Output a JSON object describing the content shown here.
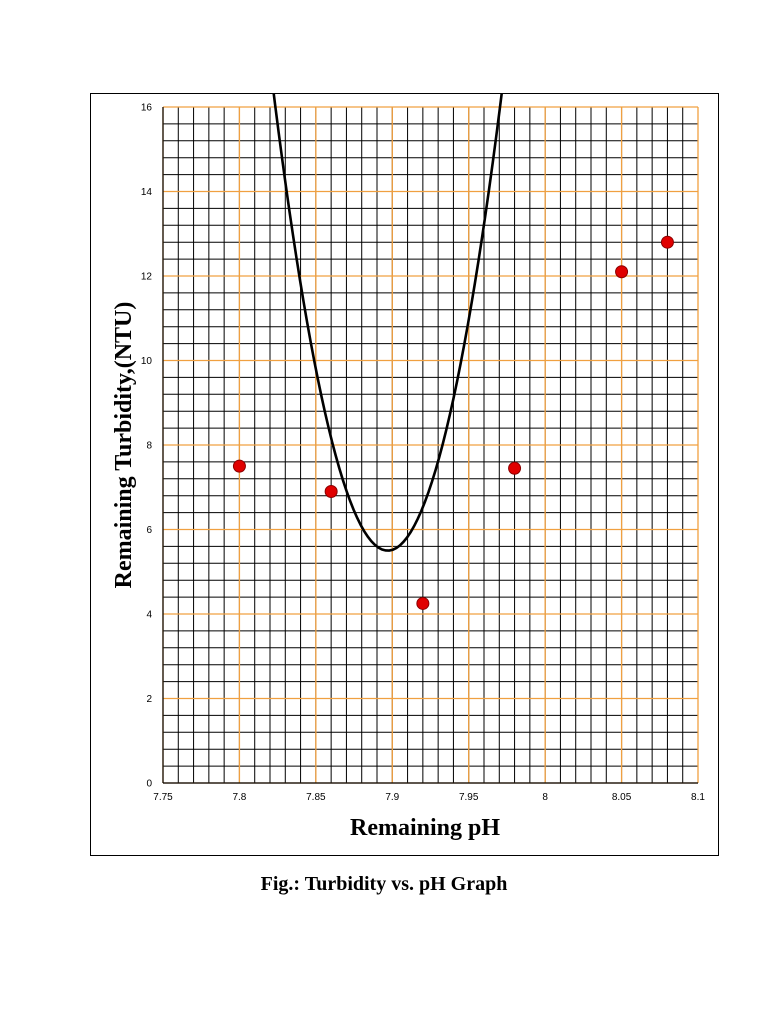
{
  "chart_data": {
    "type": "scatter",
    "xlabel": "Remaining pH",
    "ylabel": "Remaining Turbidity,(NTU)",
    "xlim": [
      7.75,
      8.1
    ],
    "ylim": [
      0,
      16
    ],
    "x_ticks": [
      "7.75",
      "7.8",
      "7.85",
      "7.9",
      "7.95",
      "8",
      "8.05",
      "8.1"
    ],
    "y_ticks": [
      "0",
      "2",
      "4",
      "6",
      "8",
      "10",
      "12",
      "14",
      "16"
    ],
    "minor_x_step": 0.01,
    "minor_y_step": 0.4,
    "grid": true,
    "series": [
      {
        "kind": "points",
        "x": [
          7.8,
          7.86,
          7.92,
          7.98,
          8.05,
          8.08
        ],
        "y": [
          7.5,
          6.9,
          4.25,
          7.45,
          12.1,
          12.8
        ],
        "color": "#e00000"
      },
      {
        "kind": "trendline",
        "type": "polynomial-2",
        "x_range": [
          7.8,
          8.08
        ],
        "coefficients": [
          5.5,
          7.897,
          0.1945
        ],
        "color": "#000000"
      }
    ],
    "colors": {
      "minor_grid": "#000000",
      "major_grid": "#f0a040",
      "points": "#e00000",
      "point_edge": "#8a0000",
      "trend": "#000000"
    }
  },
  "caption": "Fig.: Turbidity vs. pH Graph"
}
